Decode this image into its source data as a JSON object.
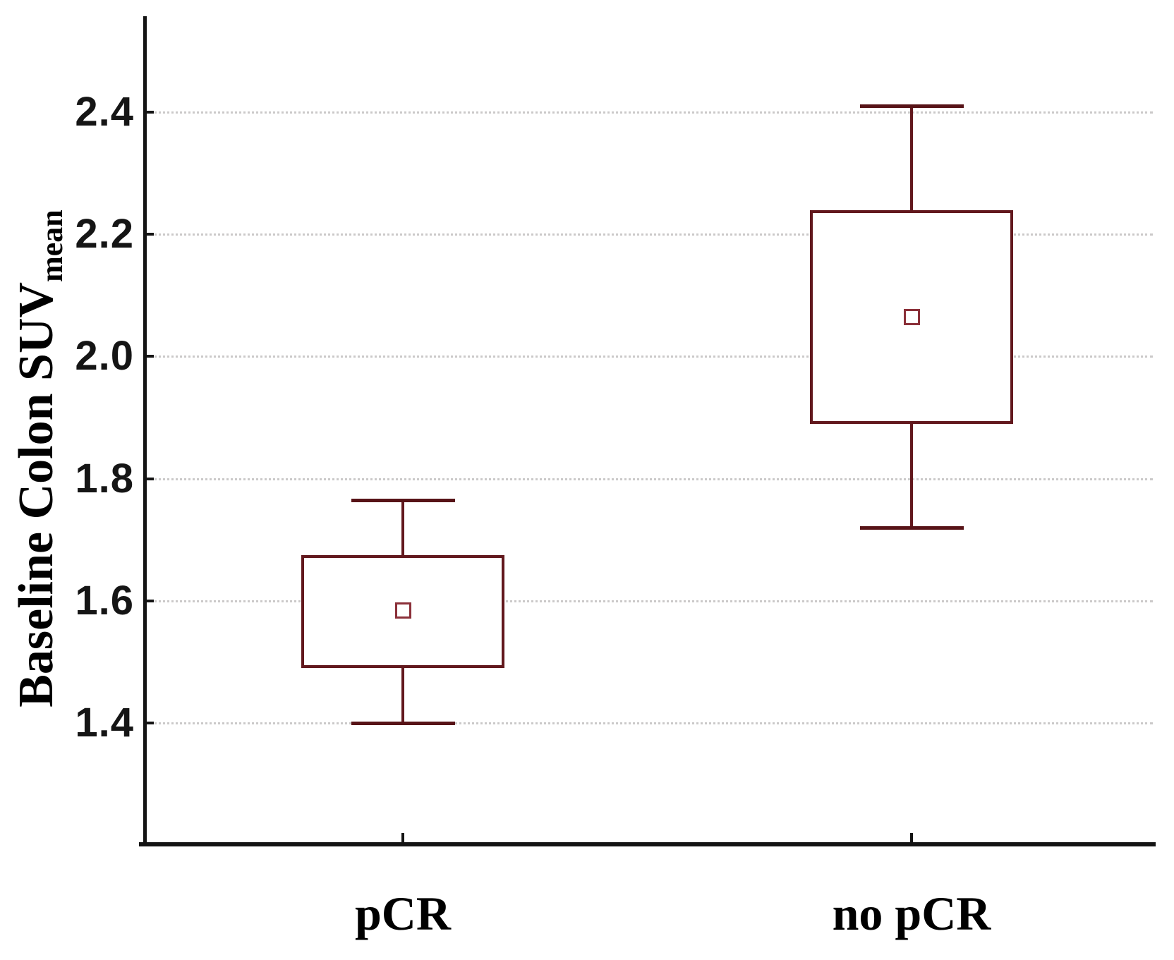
{
  "figure": {
    "y_axis_title_main": "Baseline Colon SUV",
    "y_axis_title_sub": "mean"
  },
  "colors": {
    "box_stroke": "#62181d",
    "whisker_cap_stroke": "#571317",
    "mean_marker_stroke": "#8b3039",
    "gridline": "#cbc9c9",
    "axis": "#141414",
    "text": "#000000",
    "background": "#ffffff"
  },
  "chart_data": {
    "type": "boxplot",
    "title": "",
    "xlabel": "",
    "ylabel": "Baseline Colon SUVmean",
    "categories": [
      "pCR",
      "no pCR"
    ],
    "y_ticks": [
      2.4,
      2.2,
      2.0,
      1.8,
      1.6,
      1.4
    ],
    "y_tick_labels": [
      "2.4",
      "2.2",
      "2.0",
      "1.8",
      "1.6",
      "1.4"
    ],
    "ylim": [
      1.2,
      2.56
    ],
    "grid": "horizontal dotted gridlines at each y tick",
    "legend": "none",
    "marker_note": "small open square marks the mean; no median line drawn",
    "series": [
      {
        "category": "pCR",
        "whisker_low": 1.4,
        "q1": 1.49,
        "mean": 1.585,
        "q3": 1.675,
        "whisker_high": 1.765
      },
      {
        "category": "no pCR",
        "whisker_low": 1.72,
        "q1": 1.89,
        "mean": 2.065,
        "q3": 2.24,
        "whisker_high": 2.41
      }
    ]
  }
}
